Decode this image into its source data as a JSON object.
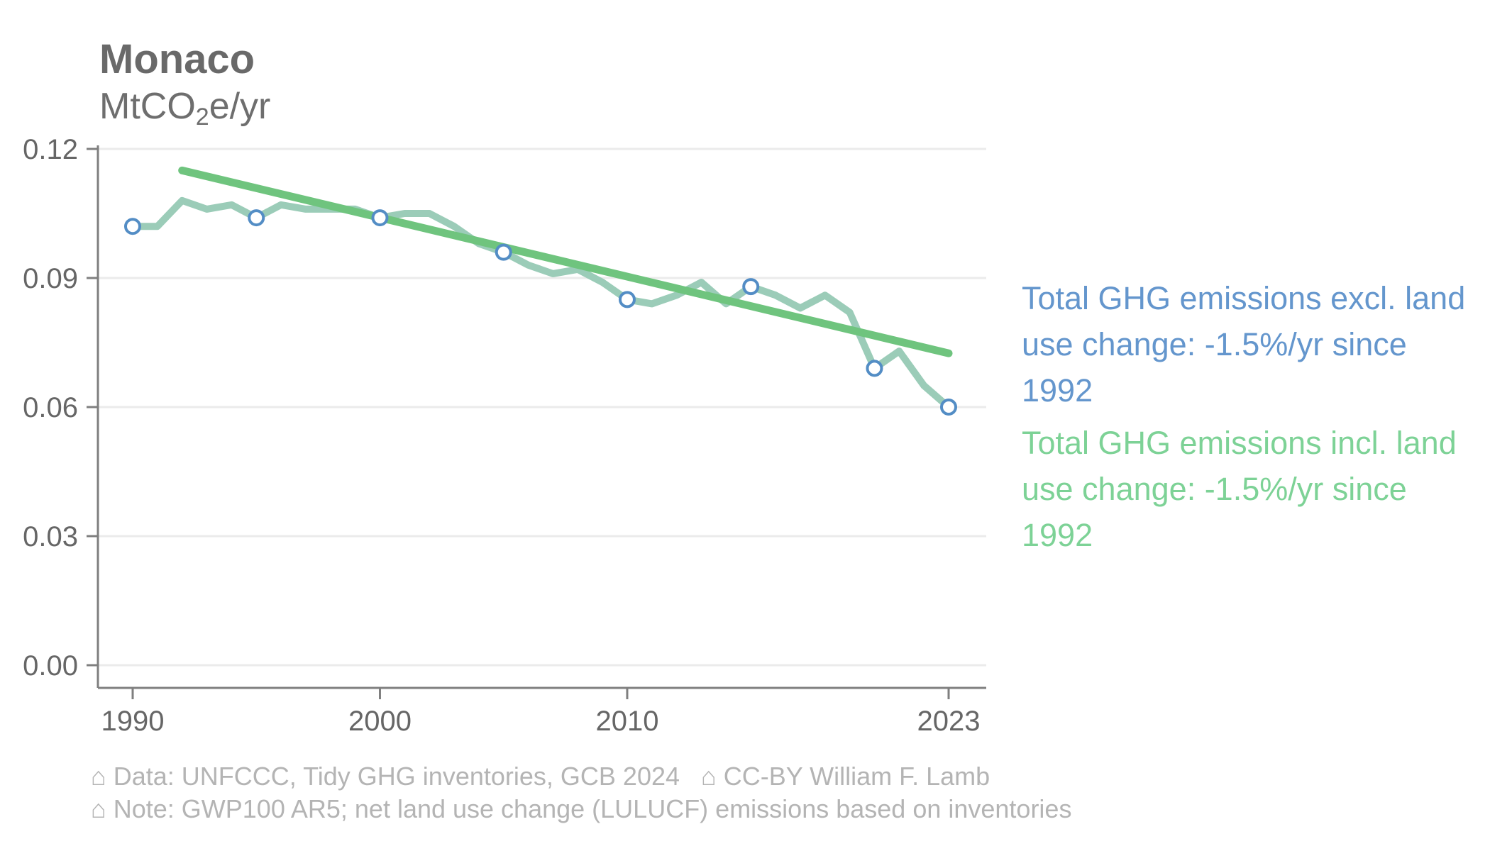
{
  "header": {
    "title": "Monaco",
    "unit_prefix": "MtCO",
    "unit_sub": "2",
    "unit_suffix": "e/yr"
  },
  "legend": {
    "excl_text": "Total GHG emissions excl. land\nuse change: -1.5%/yr since\n1992",
    "excl_color": "#6496cd",
    "incl_text": "Total GHG emissions incl. land\nuse change: -1.5%/yr since\n1992",
    "incl_color": "#7dd296"
  },
  "footer": {
    "house_glyph": "⌂",
    "data_source": "Data: UNFCCC, Tidy GHG inventories, GCB 2024",
    "license": "CC-BY William F. Lamb",
    "note": "Note: GWP100 AR5; net land use change (LULUCF) emissions based on inventories"
  },
  "chart_data": {
    "type": "line",
    "title": "Monaco",
    "ylabel": "MtCO2e/yr",
    "xlim": [
      1990,
      2023
    ],
    "ylim": [
      0,
      0.125
    ],
    "grid": "horizontal",
    "years": [
      1990,
      1991,
      1992,
      1993,
      1994,
      1995,
      1996,
      1997,
      1998,
      1999,
      2000,
      2001,
      2002,
      2003,
      2004,
      2005,
      2006,
      2007,
      2008,
      2009,
      2010,
      2011,
      2012,
      2013,
      2014,
      2015,
      2016,
      2017,
      2018,
      2019,
      2020,
      2021,
      2022,
      2023
    ],
    "series": [
      {
        "name": "Total GHG emissions excl. land use change",
        "color": "#538dc5",
        "values": [
          0.102,
          0.102,
          0.108,
          0.106,
          0.107,
          0.104,
          0.107,
          0.106,
          0.106,
          0.106,
          0.104,
          0.105,
          0.105,
          0.102,
          0.098,
          0.096,
          0.093,
          0.091,
          0.092,
          0.089,
          0.085,
          0.084,
          0.086,
          0.089,
          0.084,
          0.088,
          0.086,
          0.083,
          0.086,
          0.082,
          0.069,
          0.073,
          0.065,
          0.06
        ]
      },
      {
        "name": "Total GHG emissions incl. land use change",
        "color": "#9bccb8",
        "values": [
          0.102,
          0.102,
          0.108,
          0.106,
          0.107,
          0.104,
          0.107,
          0.106,
          0.106,
          0.106,
          0.104,
          0.105,
          0.105,
          0.102,
          0.098,
          0.096,
          0.093,
          0.091,
          0.092,
          0.089,
          0.085,
          0.084,
          0.086,
          0.089,
          0.084,
          0.088,
          0.086,
          0.083,
          0.086,
          0.082,
          0.069,
          0.073,
          0.065,
          0.06
        ]
      }
    ],
    "marker_years": [
      1990,
      1995,
      2000,
      2005,
      2010,
      2015,
      2020,
      2023
    ],
    "trend": {
      "label": "-1.5%/yr since 1992",
      "start_year": 1992,
      "end_year": 2023,
      "start_value": 0.115,
      "end_value": 0.0725,
      "rate_excl": "-1.5%/yr",
      "rate_incl": "-1.5%/yr"
    },
    "y_ticks": [
      {
        "value": 0.0,
        "label": "0.00"
      },
      {
        "value": 0.03,
        "label": "0.03"
      },
      {
        "value": 0.06,
        "label": "0.06"
      },
      {
        "value": 0.09,
        "label": "0.09"
      },
      {
        "value": 0.12,
        "label": "0.12"
      }
    ],
    "x_ticks": [
      {
        "value": 1990,
        "label": "1990"
      },
      {
        "value": 2000,
        "label": "2000"
      },
      {
        "value": 2010,
        "label": "2010"
      },
      {
        "value": 2023,
        "label": "2023"
      }
    ],
    "colors": {
      "grid": "#ebebeb",
      "axis": "#7f7f7f",
      "tick_label": "#666666",
      "series_teal": "#9bccb8",
      "series_blue": "#538dc5",
      "trend_green": "#6fc47e",
      "trend_blue": "#538dc5",
      "marker_stroke": "#538dc5",
      "marker_fill": "#ffffff"
    }
  }
}
